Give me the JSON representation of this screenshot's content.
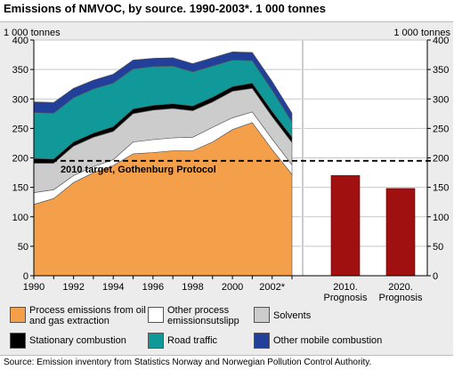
{
  "title": "Emissions of NMVOC, by source. 1990-2003*. 1 000 tonnes",
  "source": "Source: Emission inventory from Statistics Norway and Norwegian Pollution Control Authority.",
  "chart_data": {
    "type": "area",
    "title": "Emissions of NMVOC, by source. 1990-2003*. 1 000 tonnes",
    "y_unit_left": "1 000 tonnes",
    "y_unit_right": "1 000 tonnes",
    "ylim": [
      0,
      400
    ],
    "y_ticks": [
      "0",
      "50",
      "100",
      "150",
      "200",
      "250",
      "300",
      "350",
      "400"
    ],
    "x_tick_labels": [
      "1990",
      "1992",
      "1994",
      "1996",
      "1998",
      "2000",
      "2002*"
    ],
    "grid": true,
    "x": [
      1990,
      1991,
      1992,
      1993,
      1994,
      1995,
      1996,
      1997,
      1998,
      1999,
      2000,
      2001,
      2002,
      2003
    ],
    "series": [
      {
        "name": "Process emissions from oil and gas extraction",
        "color": "#f4a04a",
        "values": [
          121,
          131,
          158,
          175,
          187,
          207,
          209,
          212,
          212,
          227,
          248,
          260,
          214,
          172
        ]
      },
      {
        "name": "Other process emissionsutslipp",
        "color": "#ffffff",
        "values": [
          20,
          15,
          12,
          10,
          10,
          20,
          22,
          22,
          23,
          25,
          20,
          18,
          18,
          16
        ]
      },
      {
        "name": "Solvents",
        "color": "#cccccc",
        "values": [
          50,
          45,
          50,
          50,
          48,
          48,
          50,
          50,
          45,
          43,
          45,
          40,
          38,
          38
        ]
      },
      {
        "name": "Stationary combustion",
        "color": "#000000",
        "values": [
          8,
          7,
          7,
          7,
          8,
          8,
          8,
          8,
          8,
          8,
          8,
          9,
          9,
          9
        ]
      },
      {
        "name": "Road traffic",
        "color": "#119999",
        "values": [
          78,
          78,
          75,
          75,
          74,
          68,
          66,
          64,
          58,
          53,
          45,
          38,
          36,
          26
        ]
      },
      {
        "name": "Other mobile combustion",
        "color": "#22409a",
        "values": [
          18,
          18,
          16,
          15,
          15,
          15,
          14,
          14,
          14,
          14,
          14,
          14,
          15,
          15
        ]
      }
    ],
    "reference_line": {
      "label": "2010 target, Gothenburg Protocol",
      "value": 195
    },
    "prognosis": {
      "type": "bar",
      "categories": [
        "2010. Prognosis",
        "2020. Prognosis"
      ],
      "category_lines": [
        [
          "2010.",
          "Prognosis"
        ],
        [
          "2020.",
          "Prognosis"
        ]
      ],
      "values": [
        170,
        148
      ],
      "color": "#a01010"
    }
  }
}
